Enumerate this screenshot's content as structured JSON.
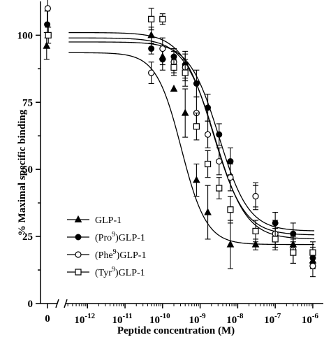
{
  "chart_data": {
    "type": "scatter",
    "title": "",
    "xlabel": "Peptide concentration (M)",
    "ylabel": "% Maximal specific binding",
    "x_scale": "log",
    "x_ticks": [
      {
        "exp": -12,
        "base": "10",
        "sup": "-12"
      },
      {
        "exp": -11,
        "base": "10",
        "sup": "-11"
      },
      {
        "exp": -10,
        "base": "10",
        "sup": "-10"
      },
      {
        "exp": -9,
        "base": "10",
        "sup": "-9"
      },
      {
        "exp": -8,
        "base": "10",
        "sup": "-8"
      },
      {
        "exp": -7,
        "base": "10",
        "sup": "-7"
      },
      {
        "exp": -6,
        "base": "10",
        "sup": "-6"
      }
    ],
    "zero_tick": "0",
    "y_ticks": [
      "0",
      "25",
      "50",
      "75",
      "100"
    ],
    "ylim": [
      0,
      110
    ],
    "grid": false,
    "legend_position": "bottom-left",
    "series": [
      {
        "name": "GLP-1",
        "marker": "triangle-filled",
        "zero": {
          "y": 96,
          "err": 5
        },
        "points": [
          {
            "x": 5e-11,
            "y": 100,
            "err": 3
          },
          {
            "x": 1e-10,
            "y": 92,
            "err": 3
          },
          {
            "x": 2e-10,
            "y": 80,
            "err": 0
          },
          {
            "x": 4e-10,
            "y": 71,
            "err": 9
          },
          {
            "x": 8e-10,
            "y": 46,
            "err": 6
          },
          {
            "x": 1.6e-09,
            "y": 34,
            "err": 10
          },
          {
            "x": 6.4e-09,
            "y": 22,
            "err": 9
          },
          {
            "x": 3e-08,
            "y": 22,
            "err": 2
          },
          {
            "x": 3e-07,
            "y": 22,
            "err": 2
          },
          {
            "x": 1e-06,
            "y": 16,
            "err": 3
          }
        ],
        "fit": {
          "top": 93.5,
          "bottom": 22,
          "logec50": -9.5,
          "hill": 1.3
        }
      },
      {
        "name": "(Pro9)GLP-1",
        "label_parts": [
          "(Pro",
          "9",
          ")GLP-1"
        ],
        "marker": "circle-filled",
        "zero": {
          "y": 104,
          "err": 5
        },
        "points": [
          {
            "x": 5e-11,
            "y": 95,
            "err": 2
          },
          {
            "x": 1e-10,
            "y": 91,
            "err": 4
          },
          {
            "x": 2e-10,
            "y": 92,
            "err": 3
          },
          {
            "x": 4e-10,
            "y": 89,
            "err": 5
          },
          {
            "x": 8e-10,
            "y": 82,
            "err": 5
          },
          {
            "x": 1.6e-09,
            "y": 73,
            "err": 5
          },
          {
            "x": 3.2e-09,
            "y": 63,
            "err": 4
          },
          {
            "x": 6.4e-09,
            "y": 53,
            "err": 5
          },
          {
            "x": 3e-08,
            "y": 40,
            "err": 4
          },
          {
            "x": 1e-07,
            "y": 30,
            "err": 4
          },
          {
            "x": 3e-07,
            "y": 26,
            "err": 4
          },
          {
            "x": 1e-06,
            "y": 17,
            "err": 4
          }
        ],
        "fit": {
          "top": 97.5,
          "bottom": 27,
          "logec50": -8.5,
          "hill": 1.1
        }
      },
      {
        "name": "(Phe9)GLP-1",
        "label_parts": [
          "(Phe",
          "9",
          ")GLP-1"
        ],
        "marker": "circle-open",
        "zero": {
          "y": 110,
          "err": 7
        },
        "points": [
          {
            "x": 5e-11,
            "y": 86,
            "err": 4
          },
          {
            "x": 1e-10,
            "y": 95,
            "err": 4
          },
          {
            "x": 2e-10,
            "y": 90,
            "err": 4
          },
          {
            "x": 4e-10,
            "y": 88,
            "err": 5
          },
          {
            "x": 8e-10,
            "y": 71,
            "err": 6
          },
          {
            "x": 1.6e-09,
            "y": 63,
            "err": 5
          },
          {
            "x": 3.2e-09,
            "y": 53,
            "err": 5
          },
          {
            "x": 6.4e-09,
            "y": 47,
            "err": 5
          },
          {
            "x": 3e-08,
            "y": 40,
            "err": 5
          },
          {
            "x": 1e-07,
            "y": 26,
            "err": 5
          },
          {
            "x": 3e-07,
            "y": 20,
            "err": 5
          },
          {
            "x": 1e-06,
            "y": 14,
            "err": 4
          }
        ],
        "fit": {
          "top": 99,
          "bottom": 24,
          "logec50": -8.6,
          "hill": 1.05
        }
      },
      {
        "name": "(Tyr9)GLP-1",
        "label_parts": [
          "(Tyr",
          "9",
          ")GLP-1"
        ],
        "marker": "square-open",
        "zero": {
          "y": 100,
          "err": 3
        },
        "points": [
          {
            "x": 5e-11,
            "y": 106,
            "err": 4
          },
          {
            "x": 1e-10,
            "y": 106,
            "err": 2
          },
          {
            "x": 2e-10,
            "y": 88,
            "err": 3
          },
          {
            "x": 4e-10,
            "y": 86,
            "err": 5
          },
          {
            "x": 8e-10,
            "y": 66,
            "err": 5
          },
          {
            "x": 1.6e-09,
            "y": 52,
            "err": 5
          },
          {
            "x": 3.2e-09,
            "y": 43,
            "err": 4
          },
          {
            "x": 6.4e-09,
            "y": 35,
            "err": 5
          },
          {
            "x": 3e-08,
            "y": 27,
            "err": 4
          },
          {
            "x": 1e-07,
            "y": 24,
            "err": 4
          },
          {
            "x": 3e-07,
            "y": 19,
            "err": 4
          },
          {
            "x": 1e-06,
            "y": 19,
            "err": 4
          }
        ],
        "fit": {
          "top": 101,
          "bottom": 25.5,
          "logec50": -8.65,
          "hill": 1.05
        }
      }
    ]
  }
}
